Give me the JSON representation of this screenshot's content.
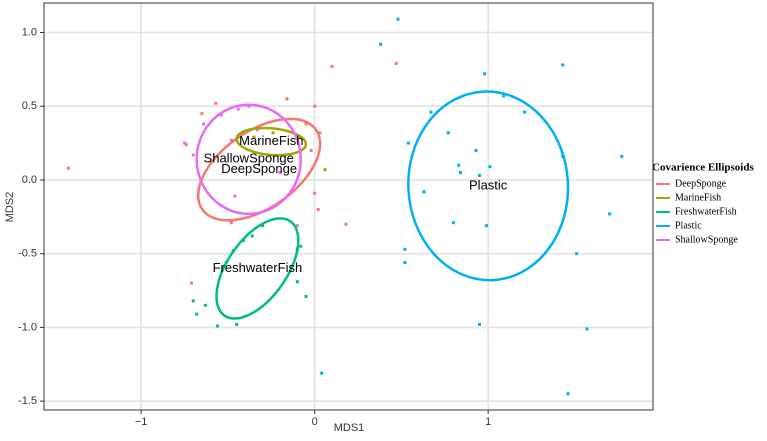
{
  "chart_data": {
    "type": "scatter",
    "x_label": "MDS1",
    "y_label": "MDS2",
    "legend_title": "Covarience Ellipsoids",
    "legend_position": "right",
    "grid": true,
    "xlim": [
      -1.56,
      1.95
    ],
    "ylim": [
      -1.56,
      1.2
    ],
    "xticks": [
      {
        "value": -1,
        "label": "−1"
      },
      0,
      1
    ],
    "yticks": [
      {
        "value": 1,
        "label": "1.0"
      },
      {
        "value": 0.5,
        "label": "0.5"
      },
      {
        "value": 0,
        "label": "0.0"
      },
      {
        "value": -0.5,
        "label": "-0.5"
      },
      {
        "value": -1,
        "label": "-1.0"
      },
      {
        "value": -1.5,
        "label": "-1.5"
      }
    ],
    "series": [
      {
        "name": "DeepSponge",
        "color": "#F8766D",
        "x": [
          -1.42,
          0.1,
          0.47,
          0.18,
          -0.65,
          -0.57,
          -0.38,
          -0.16,
          0.0,
          0.03,
          -0.74,
          -0.7,
          -0.02,
          0.0,
          0.02,
          -0.71,
          -0.48,
          -0.1,
          -0.05
        ],
        "y": [
          0.08,
          0.77,
          0.79,
          -0.3,
          0.45,
          0.52,
          0.5,
          0.55,
          0.5,
          0.32,
          0.24,
          0.17,
          0.2,
          -0.09,
          -0.2,
          -0.7,
          -0.29,
          -0.31,
          0.38
        ],
        "ellipse": {
          "cx": -0.32,
          "cy": 0.07,
          "rx": 0.4,
          "ry": 0.26,
          "angle": -35
        }
      },
      {
        "name": "MarineFish",
        "color": "#A3A500",
        "x": [
          0.06,
          -0.35,
          -0.24,
          -0.09
        ],
        "y": [
          0.07,
          0.29,
          0.32,
          0.29
        ],
        "ellipse": {
          "cx": -0.25,
          "cy": 0.26,
          "rx": 0.2,
          "ry": 0.09,
          "angle": 5
        }
      },
      {
        "name": "FreshwaterFish",
        "color": "#00BF7D",
        "x": [
          -0.08,
          -0.05,
          -0.1,
          -0.7,
          -0.68,
          -0.63,
          -0.56,
          -0.45,
          -0.36,
          -0.41,
          -0.47,
          -0.51,
          -0.3,
          -0.1
        ],
        "y": [
          -0.45,
          -0.79,
          -0.69,
          -0.82,
          -0.91,
          -0.85,
          -0.99,
          -0.98,
          -0.38,
          -0.41,
          -0.48,
          -0.56,
          -0.31,
          -0.47
        ],
        "ellipse": {
          "cx": -0.33,
          "cy": -0.6,
          "rx": 0.17,
          "ry": 0.39,
          "angle": 35
        }
      },
      {
        "name": "Plastic",
        "color": "#00B0F6",
        "x": [
          0.48,
          0.38,
          0.98,
          1.43,
          1.09,
          0.67,
          1.21,
          0.77,
          0.54,
          0.93,
          1.43,
          1.77,
          0.83,
          1.01,
          0.95,
          0.84,
          0.63,
          1.7,
          0.8,
          0.99,
          0.52,
          1.51,
          0.52,
          1.57,
          0.95,
          0.04,
          1.46
        ],
        "y": [
          1.09,
          0.92,
          0.72,
          0.78,
          0.57,
          0.46,
          0.46,
          0.32,
          0.25,
          0.2,
          0.16,
          0.16,
          0.1,
          0.09,
          0.03,
          0.05,
          -0.08,
          -0.23,
          -0.29,
          -0.31,
          -0.47,
          -0.5,
          -0.56,
          -1.01,
          -0.98,
          -1.31,
          -1.45
        ],
        "ellipse": {
          "cx": 1.0,
          "cy": -0.04,
          "rx": 0.46,
          "ry": 0.64,
          "angle": -3
        }
      },
      {
        "name": "ShallowSponge",
        "color": "#E76BF3",
        "x": [
          -0.75,
          -0.64,
          -0.44,
          -0.33,
          -0.48,
          -0.54,
          -0.2,
          -0.46
        ],
        "y": [
          0.25,
          0.38,
          0.48,
          0.34,
          0.27,
          0.44,
          0.05,
          -0.11
        ],
        "ellipse": {
          "cx": -0.38,
          "cy": 0.14,
          "rx": 0.3,
          "ry": 0.37,
          "angle": 0
        }
      }
    ]
  }
}
